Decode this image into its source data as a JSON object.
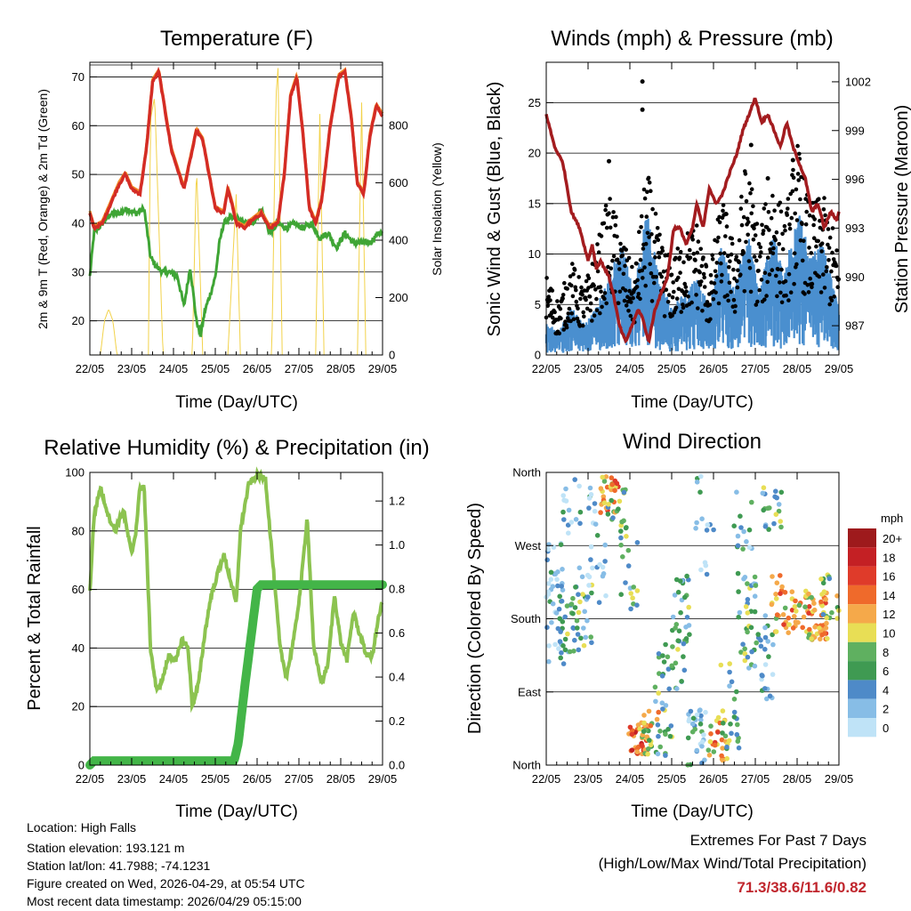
{
  "chart_data": [
    {
      "type": "line",
      "title": "Temperature (F)",
      "xlabel": "Time (Day/UTC)",
      "ylabel": "2m & 9m T (Red, Orange) & 2m Td (Green)",
      "y2label": "Solar Insolation (Yellow)",
      "x_ticks": [
        "22/05",
        "23/05",
        "24/05",
        "25/05",
        "26/05",
        "27/05",
        "28/05",
        "29/05"
      ],
      "ylim": [
        13,
        73
      ],
      "y_ticks": [
        20,
        30,
        40,
        50,
        60,
        70
      ],
      "y2lim": [
        0,
        1020
      ],
      "y2_ticks": [
        0,
        200,
        400,
        600,
        800
      ],
      "series": [
        {
          "name": "2m T",
          "color": "#d42c25",
          "x": [
            0,
            0.1,
            0.3,
            0.5,
            0.7,
            0.85,
            1.0,
            1.2,
            1.35,
            1.5,
            1.65,
            1.8,
            1.95,
            2.1,
            2.25,
            2.4,
            2.55,
            2.7,
            2.85,
            3.0,
            3.2,
            3.3,
            3.4,
            3.5,
            3.7,
            3.8,
            3.95,
            4.1,
            4.3,
            4.5,
            4.65,
            4.8,
            4.95,
            5.1,
            5.25,
            5.4,
            5.55,
            5.75,
            5.95,
            6.1,
            6.25,
            6.4,
            6.55,
            6.7,
            6.85,
            7.0
          ],
          "values": [
            42,
            39,
            40,
            44,
            48,
            50,
            47,
            46,
            55,
            69,
            71,
            63,
            55,
            51,
            47,
            53,
            59,
            57,
            50,
            43,
            42,
            47,
            44,
            40,
            39,
            40,
            41,
            42,
            39,
            40,
            50,
            66,
            70,
            58,
            43,
            40,
            45,
            60,
            70,
            71,
            62,
            48,
            46,
            58,
            64,
            62
          ]
        },
        {
          "name": "2m Td",
          "color": "#3fa535",
          "x": [
            0,
            0.1,
            0.3,
            0.5,
            0.7,
            0.9,
            1.1,
            1.3,
            1.45,
            1.6,
            1.75,
            1.9,
            2.1,
            2.25,
            2.4,
            2.55,
            2.65,
            2.75,
            2.9,
            3.0,
            3.1,
            3.2,
            3.35,
            3.5,
            3.7,
            3.9,
            4.1,
            4.3,
            4.5,
            4.7,
            4.9,
            5.1,
            5.3,
            5.5,
            5.7,
            5.9,
            6.1,
            6.3,
            6.5,
            6.7,
            6.9,
            7.0
          ],
          "values": [
            29,
            38,
            40,
            42,
            42,
            43,
            42,
            43,
            33,
            31,
            30,
            30,
            29,
            23,
            31,
            20,
            17,
            22,
            26,
            29,
            36,
            40,
            41,
            41,
            40,
            40,
            43,
            38,
            40,
            39,
            40,
            39,
            40,
            37,
            38,
            35,
            38,
            36,
            36,
            36,
            38,
            38
          ]
        },
        {
          "name": "Solar Insolation",
          "color": "#f2d24a",
          "axis": "y2",
          "x": [
            0.25,
            0.35,
            0.45,
            0.55,
            0.65,
            1.4,
            1.45,
            1.55,
            1.75,
            2.45,
            2.55,
            2.7,
            3.3,
            3.5,
            3.6,
            4.35,
            4.45,
            4.5,
            4.6,
            5.4,
            5.5,
            5.6,
            6.4,
            6.5,
            6.6
          ],
          "values": [
            0,
            120,
            160,
            120,
            0,
            0,
            820,
            900,
            0,
            0,
            660,
            0,
            0,
            560,
            0,
            0,
            900,
            1000,
            0,
            0,
            840,
            0,
            0,
            880,
            0
          ]
        }
      ]
    },
    {
      "type": "scatter",
      "title": "Winds (mph) & Pressure (mb)",
      "xlabel": "Time (Day/UTC)",
      "ylabel": "Sonic Wind & Gust (Blue, Black)",
      "y2label": "Station Pressure (Maroon)",
      "x_ticks": [
        "22/05",
        "23/05",
        "24/05",
        "25/05",
        "26/05",
        "27/05",
        "28/05",
        "29/05"
      ],
      "ylim": [
        0,
        29
      ],
      "y_ticks": [
        0,
        5,
        10,
        15,
        20,
        25
      ],
      "y2lim": [
        985.2,
        1003.2
      ],
      "y2_ticks": [
        987,
        990,
        993,
        996,
        999,
        1002
      ],
      "gust_peaks": {
        "x": [
          1.5,
          2.3,
          2.3,
          4.9,
          5.3,
          5.9
        ],
        "values": [
          19.2,
          27.1,
          24.3,
          20.8,
          17.5,
          19.3
        ]
      },
      "series": [
        {
          "name": "Station Pressure",
          "color": "#a31c1f",
          "axis": "y2",
          "x": [
            0,
            0.2,
            0.4,
            0.6,
            0.8,
            1.0,
            1.1,
            1.2,
            1.3,
            1.5,
            1.6,
            1.75,
            1.9,
            2.05,
            2.2,
            2.3,
            2.45,
            2.6,
            2.75,
            2.9,
            3.05,
            3.2,
            3.35,
            3.5,
            3.6,
            3.75,
            3.9,
            4.05,
            4.2,
            4.4,
            4.55,
            4.7,
            4.85,
            5.0,
            5.15,
            5.3,
            5.45,
            5.6,
            5.75,
            5.9,
            6.05,
            6.2,
            6.35,
            6.5,
            6.65,
            6.8,
            6.95,
            7.0
          ],
          "values": [
            1000,
            998,
            997,
            994,
            993,
            991,
            992,
            990.5,
            991,
            990,
            989,
            987,
            986,
            987,
            988,
            987.5,
            986,
            988,
            989,
            990,
            993,
            993,
            992,
            993,
            994.5,
            993,
            995.5,
            994.5,
            995,
            996.5,
            997.5,
            999,
            1000,
            1001,
            999.5,
            1000,
            999,
            998,
            999.5,
            998,
            997,
            996,
            994,
            994.5,
            993,
            994,
            993.5,
            994
          ]
        },
        {
          "name": "Sonic Wind",
          "color": "#4a8fcf",
          "x": [
            0,
            0.3,
            0.6,
            0.9,
            1.2,
            1.5,
            1.8,
            2.1,
            2.4,
            2.7,
            3.0,
            3.3,
            3.6,
            3.9,
            4.2,
            4.5,
            4.8,
            5.1,
            5.4,
            5.7,
            6.0,
            6.3,
            6.6,
            6.9,
            7.0
          ],
          "values": [
            2,
            1.5,
            3,
            2,
            3,
            5,
            7,
            4,
            9,
            5,
            3,
            4,
            5,
            3,
            7,
            4,
            8,
            4,
            8,
            5,
            10,
            6,
            7,
            4,
            3
          ]
        },
        {
          "name": "Gust",
          "color": "#000000",
          "x": [
            0,
            0.3,
            0.6,
            0.9,
            1.2,
            1.5,
            1.8,
            2.1,
            2.4,
            2.7,
            3.0,
            3.3,
            3.6,
            3.9,
            4.2,
            4.5,
            4.8,
            5.1,
            5.4,
            5.7,
            6.0,
            6.3,
            6.6,
            6.9,
            7.0
          ],
          "values": [
            6,
            4,
            7,
            5,
            8,
            12,
            9,
            6,
            14,
            9,
            7,
            9,
            10,
            6,
            12,
            8,
            15,
            9,
            14,
            10,
            16,
            11,
            12,
            9,
            7
          ]
        }
      ]
    },
    {
      "type": "line",
      "title": "Relative Humidity (%) & Precipitation (in)",
      "xlabel": "Time (Day/UTC)",
      "ylabel": "Percent & Total Rainfall",
      "x_ticks": [
        "22/05",
        "23/05",
        "24/05",
        "25/05",
        "26/05",
        "27/05",
        "28/05",
        "29/05"
      ],
      "ylim": [
        0,
        100
      ],
      "y_ticks": [
        0,
        20,
        40,
        60,
        80,
        100
      ],
      "y2lim": [
        0,
        1.33
      ],
      "y2_ticks": [
        "0.0",
        "0.2",
        "0.4",
        "0.6",
        "0.8",
        "1.0",
        "1.2"
      ],
      "series": [
        {
          "name": "Relative Humidity",
          "color": "#8cc350",
          "x": [
            0,
            0.1,
            0.25,
            0.45,
            0.6,
            0.8,
            1.0,
            1.1,
            1.2,
            1.3,
            1.45,
            1.6,
            1.75,
            1.9,
            2.05,
            2.2,
            2.35,
            2.45,
            2.6,
            2.75,
            2.9,
            3.05,
            3.2,
            3.35,
            3.5,
            3.6,
            3.8,
            4.0,
            4.2,
            4.4,
            4.55,
            4.7,
            4.9,
            5.05,
            5.2,
            5.35,
            5.55,
            5.7,
            5.85,
            6.0,
            6.15,
            6.3,
            6.45,
            6.6,
            6.75,
            6.9,
            7.0
          ],
          "values": [
            59,
            85,
            95,
            85,
            80,
            87,
            72,
            80,
            95,
            95,
            40,
            25,
            30,
            38,
            35,
            43,
            40,
            20,
            28,
            45,
            58,
            65,
            72,
            64,
            55,
            80,
            96,
            99,
            98,
            65,
            40,
            30,
            45,
            62,
            85,
            40,
            28,
            35,
            58,
            42,
            36,
            52,
            45,
            38,
            37,
            50,
            56
          ]
        },
        {
          "name": "Total Precipitation",
          "color": "#43b548",
          "axis": "y2",
          "x": [
            0,
            0.1,
            3.45,
            3.55,
            3.7,
            3.9,
            4.0,
            4.1,
            7.0
          ],
          "values": [
            0.0,
            0.02,
            0.02,
            0.1,
            0.35,
            0.65,
            0.8,
            0.82,
            0.82
          ]
        }
      ]
    },
    {
      "type": "scatter",
      "title": "Wind Direction",
      "xlabel": "Time (Day/UTC)",
      "ylabel": "Direction (Colored By Speed)",
      "x_ticks": [
        "22/05",
        "23/05",
        "24/05",
        "25/05",
        "26/05",
        "27/05",
        "28/05",
        "29/05"
      ],
      "y_ticks": [
        "North",
        "East",
        "South",
        "West",
        "North"
      ],
      "legend_title": "mph",
      "legend": [
        "0",
        "2",
        "4",
        "6",
        "8",
        "10",
        "12",
        "14",
        "16",
        "18",
        "20+"
      ],
      "legend_colors": [
        "#bfe3f7",
        "#87bde6",
        "#4e8ac8",
        "#3f9a52",
        "#5fb060",
        "#e8de55",
        "#f5a94a",
        "#ef6a2b",
        "#df3b2a",
        "#c42024",
        "#9e1a1c"
      ]
    }
  ],
  "info": {
    "location": "Location: High Falls",
    "elevation": "Station elevation: 193.121 m",
    "latlon": "Station lat/lon: 41.7988; -74.1231",
    "created": "Figure created on Wed, 2026-04-29, at 05:54 UTC",
    "recent": "Most recent data timestamp: 2026/04/29 05:15:00"
  },
  "extremes": {
    "line1": "Extremes For Past 7 Days",
    "line2": "(High/Low/Max Wind/Total Precipitation)",
    "values": "71.3/38.6/11.6/0.82"
  }
}
